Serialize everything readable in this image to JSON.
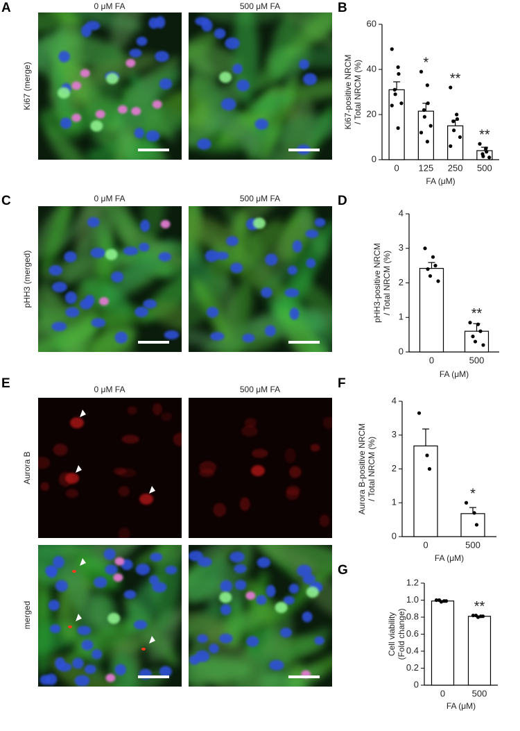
{
  "figure": {
    "labels": [
      "A",
      "B",
      "C",
      "D",
      "E",
      "F",
      "G"
    ],
    "panel_a": {
      "columns": [
        "0 μM FA",
        "500 μM FA"
      ],
      "row": "Ki67 (merge)"
    },
    "panel_c": {
      "columns": [
        "0 μM FA",
        "500 μM FA"
      ],
      "row": "pHH3 (merged)"
    },
    "panel_e": {
      "columns": [
        "0 μM FA",
        "500 μM FA"
      ],
      "rows": [
        "Aurora B",
        "merged"
      ]
    }
  },
  "chart_data": [
    {
      "type": "bar",
      "ylabel": [
        "Ki67-positive NRCM",
        "/ Total NRCM (%)"
      ],
      "xlabel": "FA (μM)",
      "categories": [
        "0",
        "125",
        "250",
        "500"
      ],
      "values": [
        31,
        21.5,
        15,
        4
      ],
      "errors": [
        3.5,
        3.5,
        2.5,
        1.5
      ],
      "points": [
        [
          49,
          41,
          38,
          31,
          29,
          25,
          24,
          14
        ],
        [
          39,
          33,
          25,
          22,
          19,
          15,
          12,
          8
        ],
        [
          32,
          20,
          18,
          17,
          13,
          10,
          6
        ],
        [
          7,
          5,
          3.5,
          2.5,
          1.5,
          1
        ]
      ],
      "annotations": [
        null,
        "*",
        "**",
        "**"
      ],
      "color": "#ffffff",
      "ylim": [
        0,
        60
      ],
      "yticks": [
        0,
        20,
        40,
        60
      ]
    },
    {
      "type": "bar",
      "ylabel": [
        "pHH3-positive NRCM",
        "/ Total NRCM (%)"
      ],
      "xlabel": "FA (μM)",
      "categories": [
        "0",
        "500"
      ],
      "values": [
        2.42,
        0.6
      ],
      "errors": [
        0.17,
        0.22
      ],
      "points": [
        [
          3.0,
          2.75,
          2.5,
          2.4,
          2.2,
          2.05
        ],
        [
          0.85,
          0.8,
          0.6,
          0.45,
          0.3,
          0.2
        ]
      ],
      "annotations": [
        null,
        "**"
      ],
      "color": "#ffffff",
      "ylim": [
        0,
        4
      ],
      "yticks": [
        0,
        1,
        2,
        3,
        4
      ]
    },
    {
      "type": "bar",
      "ylabel": [
        "Aurora B-positive NRCM",
        "/ Total NRCM (%)"
      ],
      "xlabel": "FA (μM)",
      "categories": [
        "0",
        "500"
      ],
      "values": [
        2.68,
        0.68
      ],
      "errors": [
        0.5,
        0.18
      ],
      "points": [
        [
          3.65,
          2.4,
          2.0
        ],
        [
          1.0,
          0.7,
          0.35
        ]
      ],
      "annotations": [
        null,
        "*"
      ],
      "color": "#ffffff",
      "ylim": [
        0,
        4
      ],
      "yticks": [
        0,
        1,
        2,
        3,
        4
      ]
    },
    {
      "type": "bar",
      "ylabel": [
        "Cell viability",
        "(Fold change)"
      ],
      "xlabel": "FA (μM)",
      "categories": [
        "0",
        "500"
      ],
      "values": [
        0.99,
        0.81
      ],
      "errors": [
        0.005,
        0.005
      ],
      "points": [
        [
          1.0,
          0.99,
          0.99,
          1.0,
          0.98
        ],
        [
          0.82,
          0.81,
          0.81,
          0.82,
          0.8
        ]
      ],
      "annotations": [
        null,
        "**"
      ],
      "color": "#ffffff",
      "ylim": [
        0,
        1.2
      ],
      "yticks": [
        0,
        0.2,
        0.4,
        0.6,
        0.8,
        {
          "value": 1,
          "label": "1.0"
        },
        1.2
      ]
    }
  ]
}
